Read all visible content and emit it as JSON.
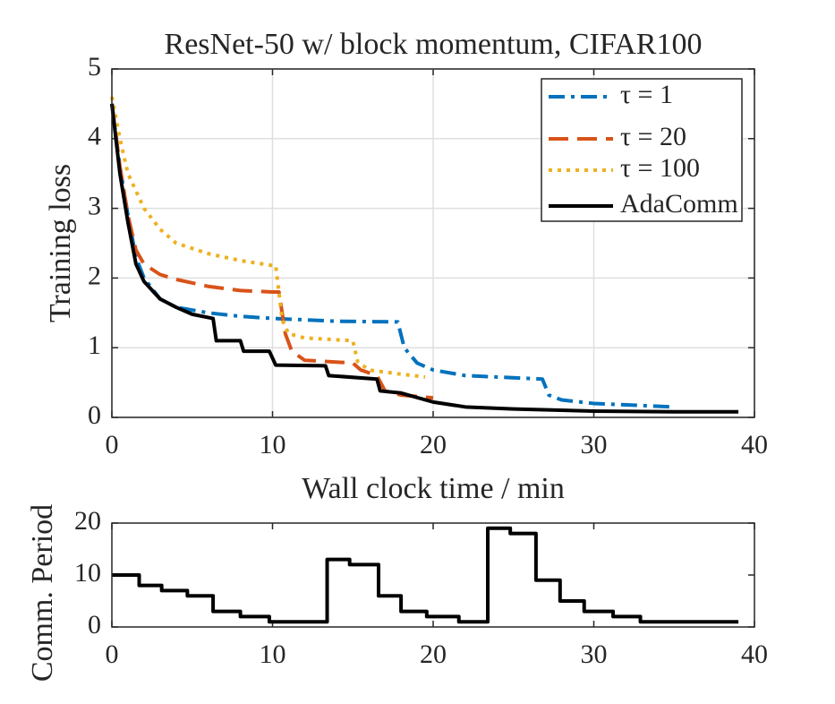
{
  "chart_data": [
    {
      "type": "line",
      "title": "ResNet-50 w/ block momentum, CIFAR100",
      "x_label": "Wall clock time / min",
      "y_label": "Training loss",
      "xlim": [
        0,
        40
      ],
      "xticks": [
        0,
        10,
        20,
        30,
        40
      ],
      "ylim": [
        0,
        5
      ],
      "yticks": [
        0,
        1,
        2,
        3,
        4,
        5
      ],
      "grid": true,
      "legend": "upper right",
      "series": [
        {
          "name": "τ = 1",
          "color": "#0072bd",
          "linestyle": "dashdot",
          "x": [
            0,
            0.5,
            1,
            1.5,
            2,
            3,
            4,
            6,
            8,
            10,
            14,
            17.8,
            18.2,
            19,
            20,
            22,
            26.8,
            27.2,
            28,
            30,
            33,
            35
          ],
          "values": [
            4.5,
            3.6,
            2.9,
            2.3,
            2.0,
            1.7,
            1.58,
            1.5,
            1.45,
            1.42,
            1.38,
            1.37,
            1.0,
            0.78,
            0.68,
            0.6,
            0.55,
            0.32,
            0.25,
            0.2,
            0.17,
            0.15
          ]
        },
        {
          "name": "τ = 20",
          "color": "#d95319",
          "linestyle": "dashed",
          "x": [
            0,
            0.5,
            1,
            1.5,
            2,
            3,
            4,
            6,
            8,
            10,
            10.4,
            10.8,
            11.2,
            12,
            15,
            15.5,
            16.5,
            17,
            18,
            20
          ],
          "values": [
            4.5,
            3.6,
            2.9,
            2.4,
            2.2,
            2.05,
            1.98,
            1.88,
            1.82,
            1.8,
            1.8,
            1.2,
            0.95,
            0.82,
            0.78,
            0.68,
            0.6,
            0.38,
            0.32,
            0.28
          ]
        },
        {
          "name": "τ = 100",
          "color": "#edb120",
          "linestyle": "dotted",
          "x": [
            0,
            0.5,
            1,
            2,
            3,
            4,
            6,
            8,
            10,
            10.2,
            10.6,
            11,
            12,
            15,
            15.3,
            16,
            18,
            19.5
          ],
          "values": [
            4.6,
            4.0,
            3.5,
            3.0,
            2.7,
            2.5,
            2.35,
            2.25,
            2.18,
            2.18,
            1.4,
            1.2,
            1.14,
            1.1,
            0.8,
            0.68,
            0.62,
            0.58
          ]
        },
        {
          "name": "AdaComm",
          "color": "#000000",
          "linestyle": "solid",
          "x": [
            0,
            0.5,
            1,
            1.5,
            2,
            3,
            4,
            5,
            6.3,
            6.5,
            8,
            8.2,
            9.8,
            10.2,
            13.3,
            13.5,
            16.5,
            16.7,
            18,
            20,
            22,
            25,
            30,
            35,
            39
          ],
          "values": [
            4.5,
            3.5,
            2.8,
            2.2,
            1.95,
            1.7,
            1.58,
            1.48,
            1.42,
            1.1,
            1.1,
            0.95,
            0.95,
            0.75,
            0.74,
            0.6,
            0.55,
            0.38,
            0.35,
            0.22,
            0.15,
            0.12,
            0.09,
            0.08,
            0.08
          ]
        }
      ]
    },
    {
      "type": "line",
      "y_label": "Comm. Period",
      "xlim": [
        0,
        40
      ],
      "xticks": [
        0,
        10,
        20,
        30,
        40
      ],
      "ylim": [
        0,
        20
      ],
      "yticks": [
        0,
        10,
        20
      ],
      "grid": false,
      "series": [
        {
          "color": "#000000",
          "linestyle": "solid",
          "x": [
            0,
            1.7,
            1.7,
            3.1,
            3.1,
            4.7,
            4.7,
            6.3,
            6.3,
            8,
            8,
            9.8,
            9.8,
            13.4,
            13.4,
            14.8,
            14.8,
            16.6,
            16.6,
            18,
            18,
            19.6,
            19.6,
            21.6,
            21.6,
            23.4,
            23.4,
            24.8,
            24.8,
            26.4,
            26.4,
            27.9,
            27.9,
            29.4,
            29.4,
            31.2,
            31.2,
            32.9,
            32.9,
            39
          ],
          "values": [
            10,
            10,
            8,
            8,
            7,
            7,
            6,
            6,
            3,
            3,
            2,
            2,
            1,
            1,
            13,
            13,
            12,
            12,
            6,
            6,
            3,
            3,
            2,
            2,
            1,
            1,
            19,
            19,
            18,
            18,
            9,
            9,
            5,
            5,
            3,
            3,
            2,
            2,
            1,
            1
          ]
        }
      ]
    }
  ]
}
